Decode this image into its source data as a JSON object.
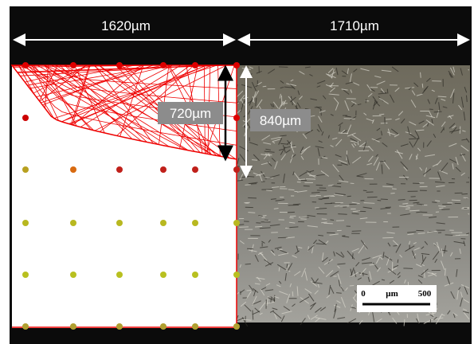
{
  "dimensions": {
    "left_width": "1620µm",
    "right_width": "1710µm",
    "inner_depth": "720µm",
    "outer_depth": "840µm"
  },
  "scale_bar": {
    "start": "0",
    "unit": "µm",
    "end": "500"
  }
}
